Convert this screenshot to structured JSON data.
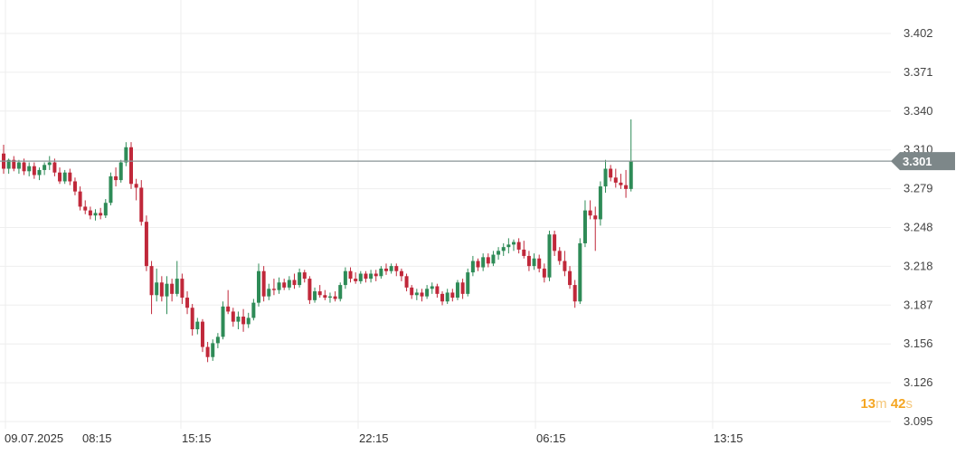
{
  "chart_data": {
    "type": "candlestick",
    "y_ticks": [
      "3.402",
      "3.371",
      "3.340",
      "3.310",
      "3.279",
      "3.248",
      "3.218",
      "3.187",
      "3.156",
      "3.126",
      "3.095"
    ],
    "ylim": [
      3.095,
      3.402
    ],
    "x_ticks": [
      "09.07.2025",
      "08:15",
      "15:15",
      "22:15",
      "06:15",
      "13:15"
    ],
    "current_price": 3.301,
    "grid": true,
    "colors": {
      "up": "#2e8b57",
      "down": "#c0283a",
      "price_line": "#8a9496",
      "price_tag": "#7d8789",
      "grid": "#eeeeee"
    },
    "candles": [
      [
        3.307,
        3.314,
        3.291,
        3.295
      ],
      [
        3.295,
        3.303,
        3.291,
        3.302
      ],
      [
        3.302,
        3.305,
        3.293,
        3.295
      ],
      [
        3.295,
        3.302,
        3.291,
        3.3
      ],
      [
        3.3,
        3.303,
        3.29,
        3.293
      ],
      [
        3.293,
        3.3,
        3.289,
        3.297
      ],
      [
        3.297,
        3.3,
        3.287,
        3.29
      ],
      [
        3.29,
        3.296,
        3.286,
        3.294
      ],
      [
        3.294,
        3.3,
        3.29,
        3.298
      ],
      [
        3.298,
        3.305,
        3.294,
        3.3
      ],
      [
        3.3,
        3.303,
        3.289,
        3.292
      ],
      [
        3.292,
        3.296,
        3.283,
        3.285
      ],
      [
        3.285,
        3.294,
        3.283,
        3.292
      ],
      [
        3.292,
        3.295,
        3.282,
        3.285
      ],
      [
        3.285,
        3.288,
        3.274,
        3.277
      ],
      [
        3.277,
        3.281,
        3.262,
        3.265
      ],
      [
        3.265,
        3.27,
        3.259,
        3.262
      ],
      [
        3.262,
        3.265,
        3.255,
        3.258
      ],
      [
        3.258,
        3.263,
        3.254,
        3.26
      ],
      [
        3.26,
        3.264,
        3.255,
        3.258
      ],
      [
        3.258,
        3.271,
        3.256,
        3.268
      ],
      [
        3.268,
        3.292,
        3.266,
        3.289
      ],
      [
        3.289,
        3.296,
        3.281,
        3.286
      ],
      [
        3.286,
        3.302,
        3.284,
        3.3
      ],
      [
        3.3,
        3.316,
        3.297,
        3.312
      ],
      [
        3.312,
        3.316,
        3.279,
        3.283
      ],
      [
        3.283,
        3.287,
        3.27,
        3.28
      ],
      [
        3.28,
        3.286,
        3.25,
        3.253
      ],
      [
        3.253,
        3.258,
        3.214,
        3.218
      ],
      [
        3.218,
        3.222,
        3.18,
        3.195
      ],
      [
        3.195,
        3.216,
        3.19,
        3.205
      ],
      [
        3.205,
        3.21,
        3.19,
        3.194
      ],
      [
        3.194,
        3.21,
        3.18,
        3.204
      ],
      [
        3.204,
        3.208,
        3.19,
        3.196
      ],
      [
        3.196,
        3.222,
        3.194,
        3.208
      ],
      [
        3.208,
        3.212,
        3.188,
        3.193
      ],
      [
        3.193,
        3.198,
        3.18,
        3.185
      ],
      [
        3.185,
        3.188,
        3.163,
        3.168
      ],
      [
        3.168,
        3.177,
        3.164,
        3.174
      ],
      [
        3.174,
        3.176,
        3.15,
        3.154
      ],
      [
        3.154,
        3.158,
        3.142,
        3.146
      ],
      [
        3.146,
        3.16,
        3.143,
        3.157
      ],
      [
        3.157,
        3.165,
        3.153,
        3.162
      ],
      [
        3.162,
        3.19,
        3.16,
        3.186
      ],
      [
        3.186,
        3.199,
        3.18,
        3.182
      ],
      [
        3.182,
        3.185,
        3.17,
        3.174
      ],
      [
        3.174,
        3.182,
        3.168,
        3.178
      ],
      [
        3.178,
        3.184,
        3.166,
        3.172
      ],
      [
        3.172,
        3.181,
        3.169,
        3.177
      ],
      [
        3.177,
        3.192,
        3.175,
        3.189
      ],
      [
        3.189,
        3.22,
        3.186,
        3.214
      ],
      [
        3.214,
        3.218,
        3.19,
        3.194
      ],
      [
        3.194,
        3.204,
        3.191,
        3.2
      ],
      [
        3.2,
        3.208,
        3.195,
        3.199
      ],
      [
        3.199,
        3.209,
        3.196,
        3.205
      ],
      [
        3.205,
        3.208,
        3.199,
        3.201
      ],
      [
        3.201,
        3.21,
        3.199,
        3.207
      ],
      [
        3.207,
        3.212,
        3.2,
        3.203
      ],
      [
        3.203,
        3.216,
        3.201,
        3.213
      ],
      [
        3.213,
        3.215,
        3.205,
        3.208
      ],
      [
        3.208,
        3.21,
        3.188,
        3.191
      ],
      [
        3.191,
        3.201,
        3.189,
        3.198
      ],
      [
        3.198,
        3.203,
        3.193,
        3.195
      ],
      [
        3.195,
        3.199,
        3.191,
        3.193
      ],
      [
        3.193,
        3.197,
        3.189,
        3.194
      ],
      [
        3.194,
        3.198,
        3.19,
        3.192
      ],
      [
        3.192,
        3.205,
        3.19,
        3.203
      ],
      [
        3.203,
        3.217,
        3.2,
        3.214
      ],
      [
        3.214,
        3.217,
        3.205,
        3.208
      ],
      [
        3.208,
        3.213,
        3.204,
        3.206
      ],
      [
        3.206,
        3.214,
        3.204,
        3.212
      ],
      [
        3.212,
        3.214,
        3.205,
        3.208
      ],
      [
        3.208,
        3.215,
        3.205,
        3.212
      ],
      [
        3.212,
        3.215,
        3.206,
        3.21
      ],
      [
        3.21,
        3.218,
        3.208,
        3.216
      ],
      [
        3.216,
        3.22,
        3.211,
        3.214
      ],
      [
        3.214,
        3.22,
        3.212,
        3.218
      ],
      [
        3.218,
        3.22,
        3.21,
        3.214
      ],
      [
        3.214,
        3.216,
        3.206,
        3.21
      ],
      [
        3.21,
        3.212,
        3.198,
        3.201
      ],
      [
        3.201,
        3.203,
        3.192,
        3.195
      ],
      [
        3.195,
        3.2,
        3.191,
        3.197
      ],
      [
        3.197,
        3.2,
        3.19,
        3.194
      ],
      [
        3.194,
        3.203,
        3.192,
        3.2
      ],
      [
        3.2,
        3.205,
        3.196,
        3.202
      ],
      [
        3.202,
        3.204,
        3.193,
        3.196
      ],
      [
        3.196,
        3.198,
        3.187,
        3.19
      ],
      [
        3.19,
        3.2,
        3.188,
        3.197
      ],
      [
        3.197,
        3.2,
        3.19,
        3.193
      ],
      [
        3.193,
        3.207,
        3.191,
        3.205
      ],
      [
        3.205,
        3.208,
        3.192,
        3.196
      ],
      [
        3.196,
        3.216,
        3.194,
        3.213
      ],
      [
        3.213,
        3.226,
        3.21,
        3.222
      ],
      [
        3.222,
        3.224,
        3.214,
        3.217
      ],
      [
        3.217,
        3.228,
        3.214,
        3.225
      ],
      [
        3.225,
        3.228,
        3.217,
        3.22
      ],
      [
        3.22,
        3.23,
        3.218,
        3.227
      ],
      [
        3.227,
        3.233,
        3.223,
        3.23
      ],
      [
        3.23,
        3.236,
        3.226,
        3.233
      ],
      [
        3.233,
        3.24,
        3.228,
        3.235
      ],
      [
        3.235,
        3.239,
        3.23,
        3.237
      ],
      [
        3.237,
        3.24,
        3.228,
        3.231
      ],
      [
        3.231,
        3.238,
        3.224,
        3.226
      ],
      [
        3.226,
        3.23,
        3.214,
        3.218
      ],
      [
        3.218,
        3.228,
        3.215,
        3.224
      ],
      [
        3.224,
        3.227,
        3.213,
        3.216
      ],
      [
        3.216,
        3.22,
        3.205,
        3.209
      ],
      [
        3.209,
        3.246,
        3.206,
        3.243
      ],
      [
        3.243,
        3.246,
        3.226,
        3.23
      ],
      [
        3.23,
        3.233,
        3.219,
        3.222
      ],
      [
        3.222,
        3.23,
        3.21,
        3.214
      ],
      [
        3.214,
        3.218,
        3.2,
        3.203
      ],
      [
        3.203,
        3.207,
        3.185,
        3.19
      ],
      [
        3.19,
        3.24,
        3.188,
        3.236
      ],
      [
        3.236,
        3.27,
        3.233,
        3.262
      ],
      [
        3.262,
        3.27,
        3.255,
        3.258
      ],
      [
        3.258,
        3.265,
        3.23,
        3.255
      ],
      [
        3.255,
        3.285,
        3.25,
        3.281
      ],
      [
        3.281,
        3.302,
        3.276,
        3.295
      ],
      [
        3.295,
        3.298,
        3.285,
        3.288
      ],
      [
        3.288,
        3.295,
        3.28,
        3.284
      ],
      [
        3.284,
        3.291,
        3.279,
        3.282
      ],
      [
        3.282,
        3.294,
        3.272,
        3.279
      ],
      [
        3.279,
        3.334,
        3.277,
        3.301
      ]
    ]
  },
  "countdown": {
    "minutes": "13",
    "minutes_unit": "m",
    "seconds": "42",
    "seconds_unit": "s"
  }
}
